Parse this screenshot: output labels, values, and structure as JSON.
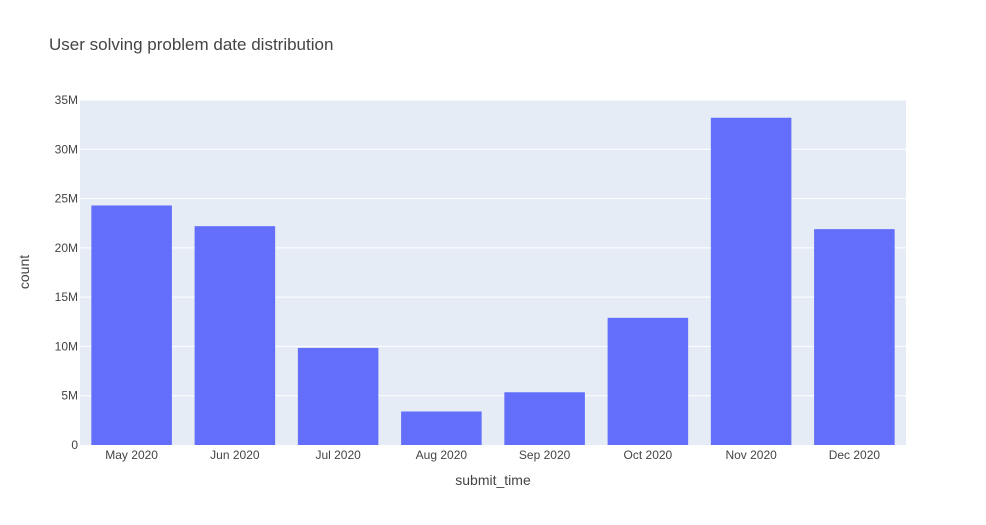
{
  "chart_data": {
    "type": "bar",
    "title": "User solving problem date distribution",
    "xlabel": "submit_time",
    "ylabel": "count",
    "categories": [
      "May 2020",
      "Jun 2020",
      "Jul 2020",
      "Aug 2020",
      "Sep 2020",
      "Oct 2020",
      "Nov 2020",
      "Dec 2020"
    ],
    "x": [
      "2020-05",
      "2020-06",
      "2020-07",
      "2020-08",
      "2020-09",
      "2020-10",
      "2020-11",
      "2020-12"
    ],
    "values": [
      24300000,
      22200000,
      9850000,
      3400000,
      5350000,
      12900000,
      33200000,
      21900000
    ],
    "ylim": [
      0,
      35000000
    ],
    "yticks": [
      0,
      5000000,
      10000000,
      15000000,
      20000000,
      25000000,
      30000000,
      35000000
    ],
    "ytick_labels": [
      "0",
      "5M",
      "10M",
      "15M",
      "20M",
      "25M",
      "30M",
      "35M"
    ],
    "grid": true,
    "colors": {
      "bar": "#636efa",
      "plot_bg": "#e5ecf6",
      "grid": "#ffffff",
      "text": "#444444"
    }
  }
}
